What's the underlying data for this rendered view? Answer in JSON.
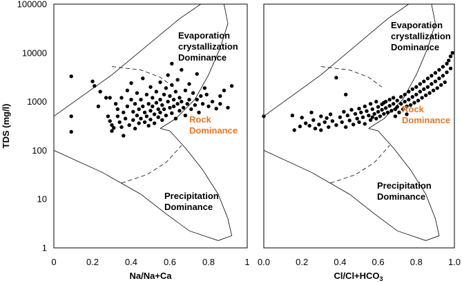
{
  "chart_data": [
    {
      "type": "scatter",
      "title": "",
      "xlabel": "Na/Na+Ca",
      "ylabel": "TDS (mg/l)",
      "xlim": [
        0,
        1
      ],
      "ylim": [
        1,
        100000
      ],
      "y_scale": "log",
      "grid": false,
      "x_ticks": [
        "0",
        "0.2",
        "0.4",
        "0.6",
        "0.8",
        "1"
      ],
      "y_ticks": [
        "1",
        "10",
        "100",
        "1000",
        "10000",
        "100000"
      ],
      "annotations": [
        {
          "lines": [
            "Evaporation",
            "crystallization",
            "Dominance"
          ],
          "color": "#000000"
        },
        {
          "lines": [
            "Rock",
            "Dominance"
          ],
          "color": "#e87722"
        },
        {
          "lines": [
            "Precipitation",
            "Dominance"
          ],
          "color": "#000000"
        }
      ],
      "points": [
        [
          0.09,
          3300
        ],
        [
          0.09,
          500
        ],
        [
          0.09,
          240
        ],
        [
          0.2,
          2600
        ],
        [
          0.21,
          2100
        ],
        [
          0.23,
          800
        ],
        [
          0.24,
          1600
        ],
        [
          0.27,
          1200
        ],
        [
          0.29,
          1200
        ],
        [
          0.28,
          500
        ],
        [
          0.29,
          400
        ],
        [
          0.3,
          330
        ],
        [
          0.31,
          290
        ],
        [
          0.3,
          250
        ],
        [
          0.32,
          900
        ],
        [
          0.33,
          700
        ],
        [
          0.33,
          500
        ],
        [
          0.34,
          380
        ],
        [
          0.35,
          1200
        ],
        [
          0.35,
          300
        ],
        [
          0.36,
          200
        ],
        [
          0.36,
          600
        ],
        [
          0.37,
          450
        ],
        [
          0.38,
          1700
        ],
        [
          0.38,
          800
        ],
        [
          0.39,
          330
        ],
        [
          0.4,
          2400
        ],
        [
          0.4,
          1100
        ],
        [
          0.41,
          620
        ],
        [
          0.41,
          420
        ],
        [
          0.42,
          280
        ],
        [
          0.42,
          900
        ],
        [
          0.43,
          1500
        ],
        [
          0.43,
          520
        ],
        [
          0.44,
          360
        ],
        [
          0.44,
          700
        ],
        [
          0.45,
          1100
        ],
        [
          0.45,
          450
        ],
        [
          0.46,
          3000
        ],
        [
          0.46,
          800
        ],
        [
          0.47,
          600
        ],
        [
          0.47,
          380
        ],
        [
          0.48,
          1400
        ],
        [
          0.48,
          500
        ],
        [
          0.49,
          900
        ],
        [
          0.49,
          320
        ],
        [
          0.5,
          2000
        ],
        [
          0.5,
          650
        ],
        [
          0.5,
          430
        ],
        [
          0.51,
          1200
        ],
        [
          0.51,
          800
        ],
        [
          0.52,
          550
        ],
        [
          0.52,
          360
        ],
        [
          0.53,
          1600
        ],
        [
          0.53,
          950
        ],
        [
          0.54,
          700
        ],
        [
          0.54,
          480
        ],
        [
          0.55,
          2500
        ],
        [
          0.55,
          1100
        ],
        [
          0.55,
          600
        ],
        [
          0.56,
          850
        ],
        [
          0.56,
          420
        ],
        [
          0.57,
          1400
        ],
        [
          0.57,
          700
        ],
        [
          0.58,
          1900
        ],
        [
          0.58,
          520
        ],
        [
          0.59,
          1000
        ],
        [
          0.59,
          3500
        ],
        [
          0.6,
          1300
        ],
        [
          0.6,
          750
        ],
        [
          0.61,
          6000
        ],
        [
          0.61,
          2200
        ],
        [
          0.61,
          580
        ],
        [
          0.62,
          1100
        ],
        [
          0.62,
          800
        ],
        [
          0.63,
          1600
        ],
        [
          0.63,
          450
        ],
        [
          0.64,
          900
        ],
        [
          0.64,
          2800
        ],
        [
          0.65,
          1200
        ],
        [
          0.65,
          650
        ],
        [
          0.66,
          4500
        ],
        [
          0.66,
          1000
        ],
        [
          0.67,
          750
        ],
        [
          0.68,
          1700
        ],
        [
          0.68,
          520
        ],
        [
          0.69,
          900
        ],
        [
          0.7,
          2300
        ],
        [
          0.7,
          1100
        ],
        [
          0.71,
          700
        ],
        [
          0.72,
          1500
        ],
        [
          0.73,
          850
        ],
        [
          0.74,
          3700
        ],
        [
          0.74,
          1100
        ],
        [
          0.75,
          600
        ],
        [
          0.76,
          1300
        ],
        [
          0.77,
          900
        ],
        [
          0.78,
          1900
        ],
        [
          0.79,
          1400
        ],
        [
          0.8,
          800
        ],
        [
          0.82,
          1000
        ],
        [
          0.84,
          720
        ],
        [
          0.86,
          1300
        ],
        [
          0.86,
          900
        ],
        [
          0.88,
          1700
        ],
        [
          0.9,
          750
        ],
        [
          0.92,
          2100
        ]
      ]
    },
    {
      "type": "scatter",
      "title": "",
      "xlabel": "Cl/Cl+HCO3",
      "ylabel": "",
      "xlim": [
        0,
        1
      ],
      "ylim": [
        1,
        100000
      ],
      "y_scale": "log",
      "grid": false,
      "x_ticks": [
        "0.0",
        "0.2",
        "0.4",
        "0.6",
        "0.8",
        "1.0"
      ],
      "annotations": [
        {
          "lines": [
            "Evaporation",
            "crystallization",
            "Dominance"
          ],
          "color": "#000000"
        },
        {
          "lines": [
            "Rock",
            "Dominance"
          ],
          "color": "#e87722"
        },
        {
          "lines": [
            "Precipitation",
            "Dominance"
          ],
          "color": "#000000"
        }
      ],
      "points": [
        [
          0.0,
          500
        ],
        [
          0.15,
          520
        ],
        [
          0.16,
          260
        ],
        [
          0.19,
          310
        ],
        [
          0.2,
          470
        ],
        [
          0.22,
          360
        ],
        [
          0.24,
          320
        ],
        [
          0.25,
          600
        ],
        [
          0.26,
          420
        ],
        [
          0.27,
          280
        ],
        [
          0.29,
          340
        ],
        [
          0.3,
          500
        ],
        [
          0.3,
          260
        ],
        [
          0.32,
          380
        ],
        [
          0.33,
          460
        ],
        [
          0.34,
          300
        ],
        [
          0.35,
          550
        ],
        [
          0.36,
          400
        ],
        [
          0.38,
          3100
        ],
        [
          0.38,
          330
        ],
        [
          0.4,
          480
        ],
        [
          0.41,
          380
        ],
        [
          0.42,
          620
        ],
        [
          0.43,
          1400
        ],
        [
          0.43,
          300
        ],
        [
          0.44,
          520
        ],
        [
          0.45,
          410
        ],
        [
          0.46,
          680
        ],
        [
          0.47,
          340
        ],
        [
          0.48,
          560
        ],
        [
          0.49,
          450
        ],
        [
          0.5,
          720
        ],
        [
          0.5,
          380
        ],
        [
          0.51,
          600
        ],
        [
          0.52,
          480
        ],
        [
          0.53,
          800
        ],
        [
          0.53,
          350
        ],
        [
          0.54,
          640
        ],
        [
          0.55,
          520
        ],
        [
          0.56,
          900
        ],
        [
          0.56,
          420
        ],
        [
          0.57,
          700
        ],
        [
          0.58,
          560
        ],
        [
          0.59,
          1000
        ],
        [
          0.59,
          450
        ],
        [
          0.6,
          780
        ],
        [
          0.6,
          620
        ],
        [
          0.61,
          500
        ],
        [
          0.62,
          880
        ],
        [
          0.62,
          680
        ],
        [
          0.63,
          560
        ],
        [
          0.64,
          1000
        ],
        [
          0.64,
          740
        ],
        [
          0.65,
          600
        ],
        [
          0.66,
          1100
        ],
        [
          0.66,
          820
        ],
        [
          0.67,
          650
        ],
        [
          0.68,
          1200
        ],
        [
          0.68,
          900
        ],
        [
          0.69,
          700
        ],
        [
          0.7,
          1050
        ],
        [
          0.7,
          780
        ],
        [
          0.71,
          600
        ],
        [
          0.72,
          1250
        ],
        [
          0.72,
          900
        ],
        [
          0.73,
          700
        ],
        [
          0.74,
          1400
        ],
        [
          0.74,
          1000
        ],
        [
          0.75,
          800
        ],
        [
          0.76,
          1600
        ],
        [
          0.76,
          1100
        ],
        [
          0.77,
          850
        ],
        [
          0.78,
          1800
        ],
        [
          0.78,
          1250
        ],
        [
          0.79,
          950
        ],
        [
          0.8,
          2000
        ],
        [
          0.8,
          1400
        ],
        [
          0.81,
          1050
        ],
        [
          0.82,
          2300
        ],
        [
          0.82,
          1600
        ],
        [
          0.83,
          1200
        ],
        [
          0.84,
          2600
        ],
        [
          0.84,
          1800
        ],
        [
          0.85,
          1350
        ],
        [
          0.86,
          3000
        ],
        [
          0.86,
          2000
        ],
        [
          0.87,
          1500
        ],
        [
          0.88,
          3400
        ],
        [
          0.88,
          2300
        ],
        [
          0.89,
          1700
        ],
        [
          0.9,
          3900
        ],
        [
          0.9,
          2600
        ],
        [
          0.91,
          1900
        ],
        [
          0.92,
          4500
        ],
        [
          0.92,
          3000
        ],
        [
          0.93,
          2200
        ],
        [
          0.94,
          5200
        ],
        [
          0.94,
          3400
        ],
        [
          0.95,
          2500
        ],
        [
          0.96,
          6000
        ],
        [
          0.96,
          4000
        ],
        [
          0.97,
          7000
        ],
        [
          0.98,
          8500
        ],
        [
          0.98,
          4800
        ],
        [
          0.99,
          10000
        ],
        [
          0.57,
          480
        ],
        [
          0.63,
          950
        ],
        [
          0.69,
          500
        ],
        [
          0.75,
          550
        ]
      ]
    }
  ]
}
